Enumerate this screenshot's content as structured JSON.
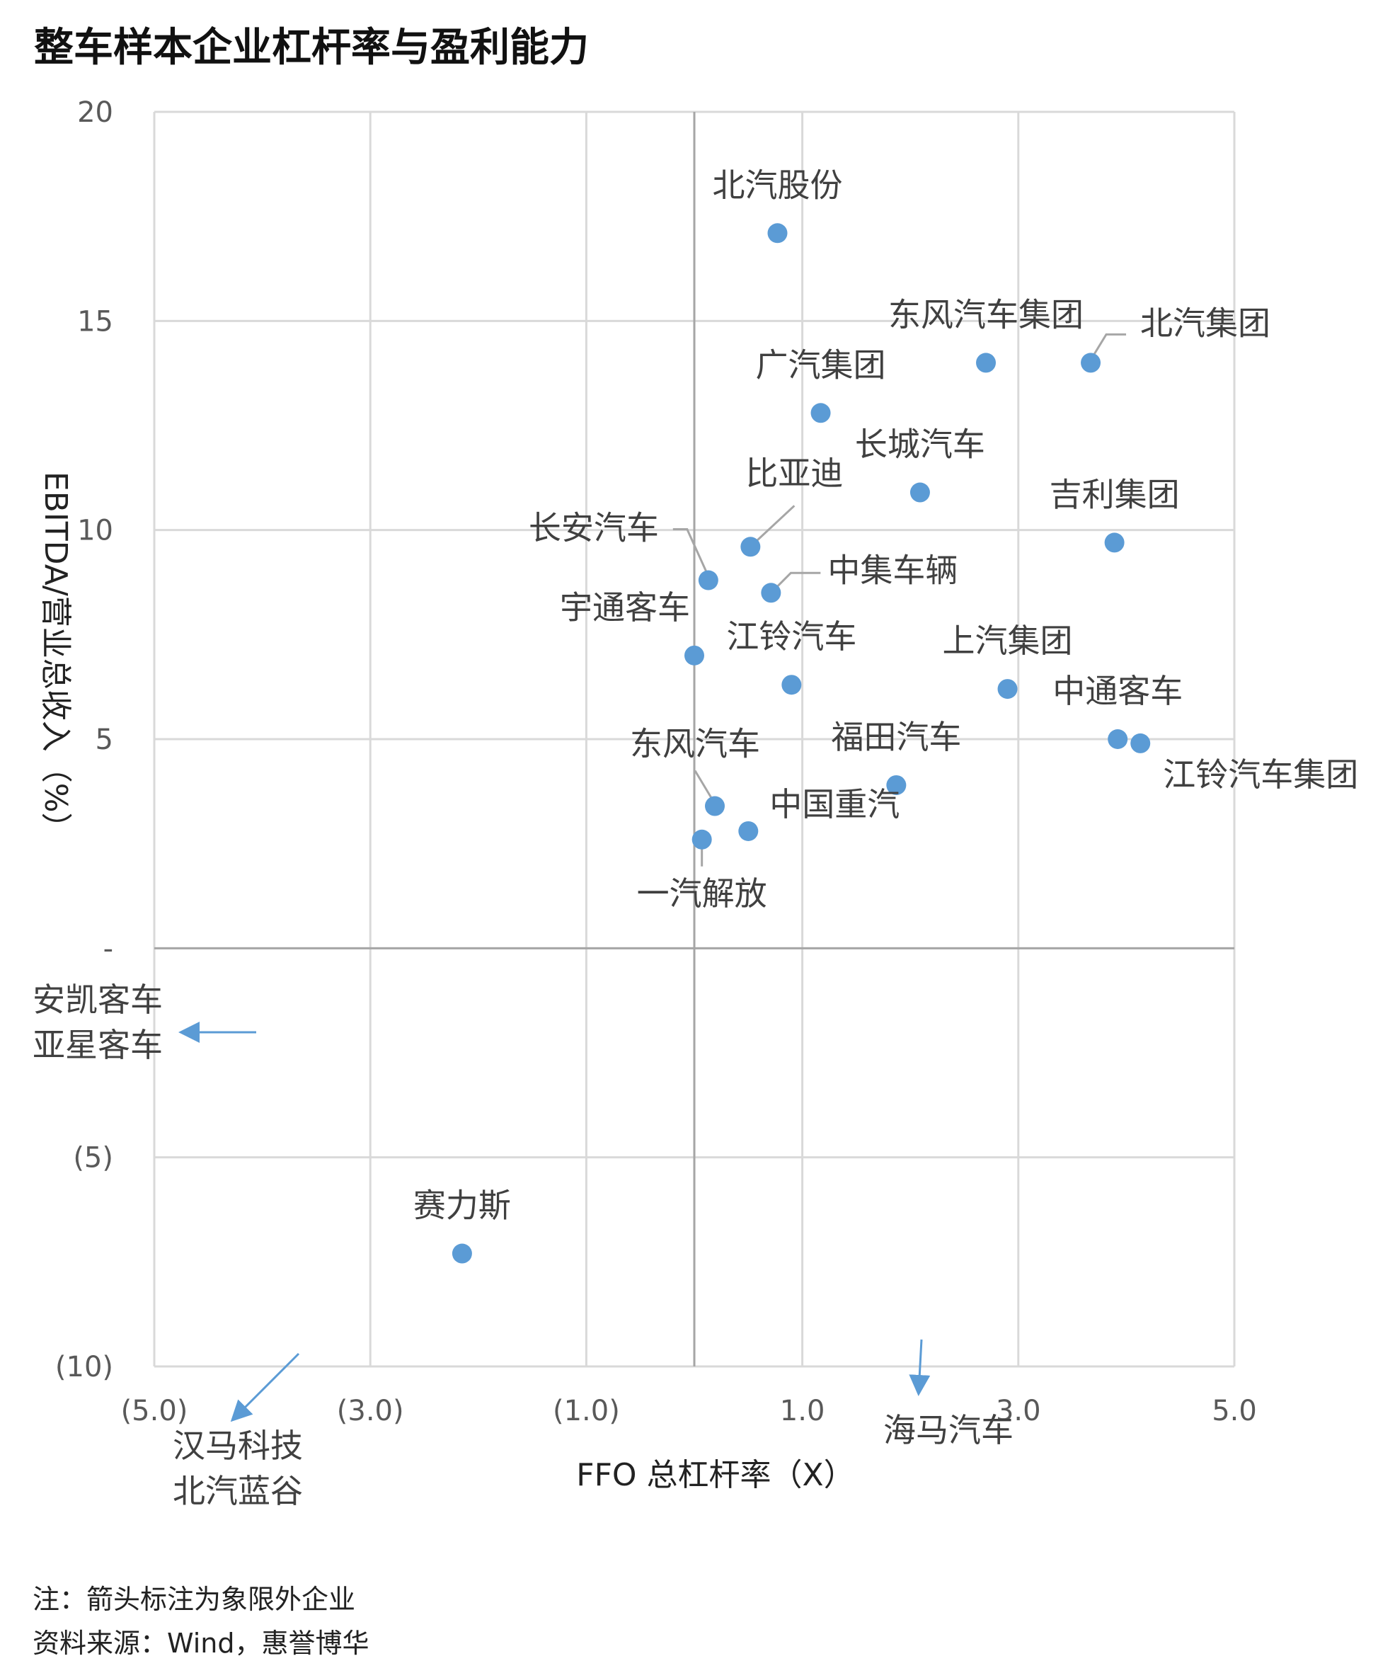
{
  "title": "整车样本企业杠杆率与盈利能力",
  "notes": {
    "line1": "注：箭头标注为象限外企业",
    "line2": "资料来源：Wind，惠誉博华"
  },
  "chart_data": {
    "type": "scatter",
    "title": "整车样本企业杠杆率与盈利能力",
    "xlabel": "FFO 总杠杆率（X）",
    "ylabel": "EBITDA/营业总收入（%）",
    "xlim": [
      -5,
      5
    ],
    "ylim": [
      -10,
      20
    ],
    "x_ticks": [
      -5,
      -3,
      -1,
      1,
      3,
      5
    ],
    "x_tick_labels": [
      "(5.0)",
      "(3.0)",
      "(1.0)",
      "1.0",
      "3.0",
      "5.0"
    ],
    "y_ticks": [
      20,
      15,
      10,
      5,
      0,
      -5,
      -10
    ],
    "y_tick_labels": [
      "20",
      "15",
      "10",
      "5",
      "-",
      "(5)",
      "(10)"
    ],
    "grid": true,
    "marker_color": "#5b9bd5",
    "points": [
      {
        "label": "北汽股份",
        "x": 0.77,
        "y": 17.1
      },
      {
        "label": "东风汽车集团",
        "x": 2.7,
        "y": 14.0
      },
      {
        "label": "北汽集团",
        "x": 3.67,
        "y": 14.0
      },
      {
        "label": "广汽集团",
        "x": 1.17,
        "y": 12.8
      },
      {
        "label": "长城汽车",
        "x": 2.09,
        "y": 10.9
      },
      {
        "label": "吉利集团",
        "x": 3.89,
        "y": 9.7
      },
      {
        "label": "比亚迪",
        "x": 0.52,
        "y": 9.6
      },
      {
        "label": "长安汽车",
        "x": 0.13,
        "y": 8.8
      },
      {
        "label": "中集车辆",
        "x": 0.71,
        "y": 8.5
      },
      {
        "label": "宇通客车",
        "x": 0.0,
        "y": 7.0
      },
      {
        "label": "江铃汽车",
        "x": 0.9,
        "y": 6.3
      },
      {
        "label": "上汽集团",
        "x": 2.9,
        "y": 6.2
      },
      {
        "label": "中通客车",
        "x": 3.92,
        "y": 5.0
      },
      {
        "label": "江铃汽车集团",
        "x": 4.13,
        "y": 4.9
      },
      {
        "label": "福田汽车",
        "x": 1.87,
        "y": 3.9
      },
      {
        "label": "东风汽车",
        "x": 0.19,
        "y": 3.4
      },
      {
        "label": "中国重汽",
        "x": 0.5,
        "y": 2.8
      },
      {
        "label": "一汽解放",
        "x": 0.07,
        "y": 2.6
      },
      {
        "label": "赛力斯",
        "x": -2.15,
        "y": -7.3
      }
    ],
    "outside_annotations": [
      {
        "labels": [
          "安凯客车",
          "亚星客车"
        ],
        "direction": "left"
      },
      {
        "labels": [
          "汉马科技",
          "北汽蓝谷"
        ],
        "direction": "down-left"
      },
      {
        "labels": [
          "海马汽车"
        ],
        "direction": "down"
      }
    ]
  }
}
